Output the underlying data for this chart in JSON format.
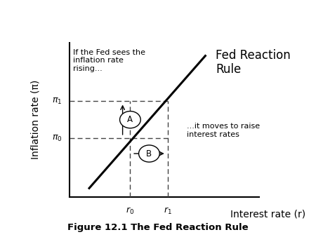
{
  "title": "Figure 12.1 The Fed Reaction Rule",
  "ylabel": "Inflation rate (π)",
  "xlabel": "Interest rate (r)",
  "line_label": "Fed Reaction\nRule",
  "annotation_top": "If the Fed sees the\ninflation rate\nrising...",
  "annotation_bottom": "...it moves to raise\ninterest rates",
  "label_A": "A",
  "label_B": "B",
  "pi0": 0.38,
  "pi1": 0.62,
  "r0": 0.32,
  "r1": 0.52,
  "line_x_start": 0.1,
  "line_y_start": 0.05,
  "line_x_end": 0.72,
  "line_y_end": 0.92,
  "xlim": [
    0,
    1.0
  ],
  "ylim": [
    0,
    1.0
  ],
  "line_color": "#000000",
  "dashed_color": "#444444",
  "background_color": "#ffffff",
  "title_fontsize": 9.5,
  "axis_label_fontsize": 10,
  "tick_label_fontsize": 9,
  "annotation_fontsize": 8,
  "line_label_fontsize": 12
}
